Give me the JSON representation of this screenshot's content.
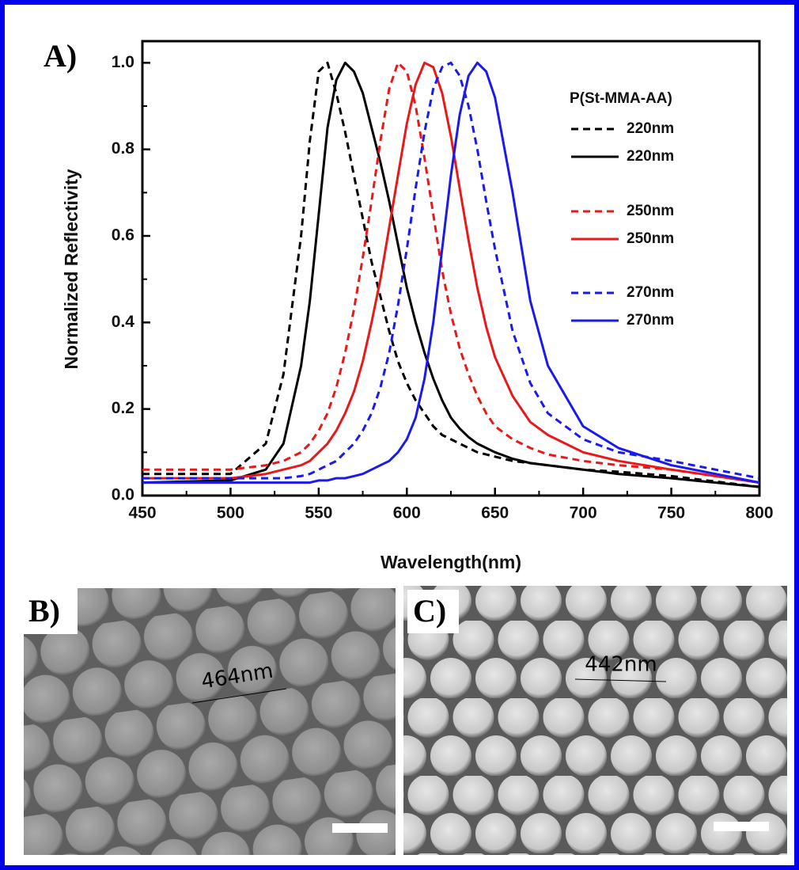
{
  "chart_data": {
    "type": "line",
    "x_label": "Wavelength(nm)",
    "y_label": "Normalized Reflectivity",
    "legend_title": "P(St-MMA-AA)",
    "legend": "upper right",
    "xlim": [
      450,
      800
    ],
    "xticks": [
      450,
      500,
      550,
      600,
      650,
      700,
      750,
      800
    ],
    "ylim": [
      0,
      1.05
    ],
    "yticks": [
      {
        "value": 0,
        "label": "0.0"
      },
      {
        "value": 0.2,
        "label": "0.2"
      },
      {
        "value": 0.4,
        "label": "0.4"
      },
      {
        "value": 0.6,
        "label": "0.6"
      },
      {
        "value": 0.8,
        "label": "0.8"
      },
      {
        "value": 1,
        "label": "1.0"
      }
    ],
    "x": [
      450,
      500,
      520,
      530,
      540,
      545,
      550,
      555,
      560,
      565,
      570,
      575,
      580,
      585,
      590,
      595,
      600,
      605,
      610,
      615,
      620,
      625,
      630,
      635,
      640,
      645,
      650,
      660,
      670,
      680,
      700,
      720,
      750,
      800
    ],
    "series": [
      {
        "name": "220nm",
        "color": "#000000",
        "dash": true,
        "values": [
          0.05,
          0.05,
          0.12,
          0.28,
          0.6,
          0.82,
          0.98,
          1.0,
          0.93,
          0.84,
          0.74,
          0.64,
          0.54,
          0.46,
          0.38,
          0.31,
          0.26,
          0.22,
          0.19,
          0.16,
          0.14,
          0.13,
          0.12,
          0.11,
          0.1,
          0.095,
          0.09,
          0.08,
          0.075,
          0.07,
          0.06,
          0.055,
          0.045,
          0.02
        ]
      },
      {
        "name": "220nm",
        "color": "#000000",
        "dash": false,
        "values": [
          0.03,
          0.035,
          0.06,
          0.12,
          0.3,
          0.45,
          0.65,
          0.85,
          0.96,
          1.0,
          0.98,
          0.93,
          0.85,
          0.77,
          0.68,
          0.58,
          0.48,
          0.4,
          0.33,
          0.27,
          0.22,
          0.18,
          0.155,
          0.135,
          0.12,
          0.11,
          0.1,
          0.085,
          0.075,
          0.07,
          0.06,
          0.05,
          0.04,
          0.02
        ]
      },
      {
        "name": "250nm",
        "color": "#e8191a",
        "dash": true,
        "values": [
          0.06,
          0.06,
          0.07,
          0.08,
          0.1,
          0.12,
          0.15,
          0.19,
          0.25,
          0.33,
          0.43,
          0.55,
          0.68,
          0.82,
          0.94,
          1.0,
          0.98,
          0.9,
          0.78,
          0.65,
          0.52,
          0.42,
          0.34,
          0.28,
          0.23,
          0.19,
          0.16,
          0.13,
          0.11,
          0.095,
          0.08,
          0.07,
          0.06,
          0.03
        ]
      },
      {
        "name": "250nm",
        "color": "#e8191a",
        "dash": false,
        "values": [
          0.04,
          0.04,
          0.05,
          0.06,
          0.07,
          0.08,
          0.1,
          0.12,
          0.15,
          0.19,
          0.24,
          0.31,
          0.4,
          0.5,
          0.62,
          0.74,
          0.86,
          0.95,
          1.0,
          0.99,
          0.93,
          0.83,
          0.71,
          0.59,
          0.48,
          0.39,
          0.32,
          0.23,
          0.17,
          0.14,
          0.1,
          0.08,
          0.06,
          0.03
        ]
      },
      {
        "name": "270nm",
        "color": "#1a1aee",
        "dash": true,
        "values": [
          0.04,
          0.04,
          0.04,
          0.04,
          0.045,
          0.05,
          0.06,
          0.07,
          0.08,
          0.1,
          0.12,
          0.15,
          0.19,
          0.25,
          0.33,
          0.44,
          0.57,
          0.71,
          0.84,
          0.94,
          0.99,
          1.0,
          0.97,
          0.9,
          0.8,
          0.68,
          0.57,
          0.38,
          0.26,
          0.19,
          0.13,
          0.1,
          0.08,
          0.04
        ]
      },
      {
        "name": "270nm",
        "color": "#1a1aee",
        "dash": false,
        "values": [
          0.03,
          0.03,
          0.03,
          0.03,
          0.03,
          0.03,
          0.035,
          0.035,
          0.04,
          0.04,
          0.045,
          0.05,
          0.06,
          0.07,
          0.08,
          0.1,
          0.13,
          0.18,
          0.27,
          0.4,
          0.57,
          0.74,
          0.88,
          0.97,
          1.0,
          0.98,
          0.92,
          0.7,
          0.45,
          0.3,
          0.16,
          0.11,
          0.07,
          0.03
        ]
      }
    ]
  },
  "panels": [
    {
      "label": "A)"
    },
    {
      "label": "B)",
      "annotation": "464nm"
    },
    {
      "label": "C)",
      "annotation": "442nm"
    }
  ]
}
